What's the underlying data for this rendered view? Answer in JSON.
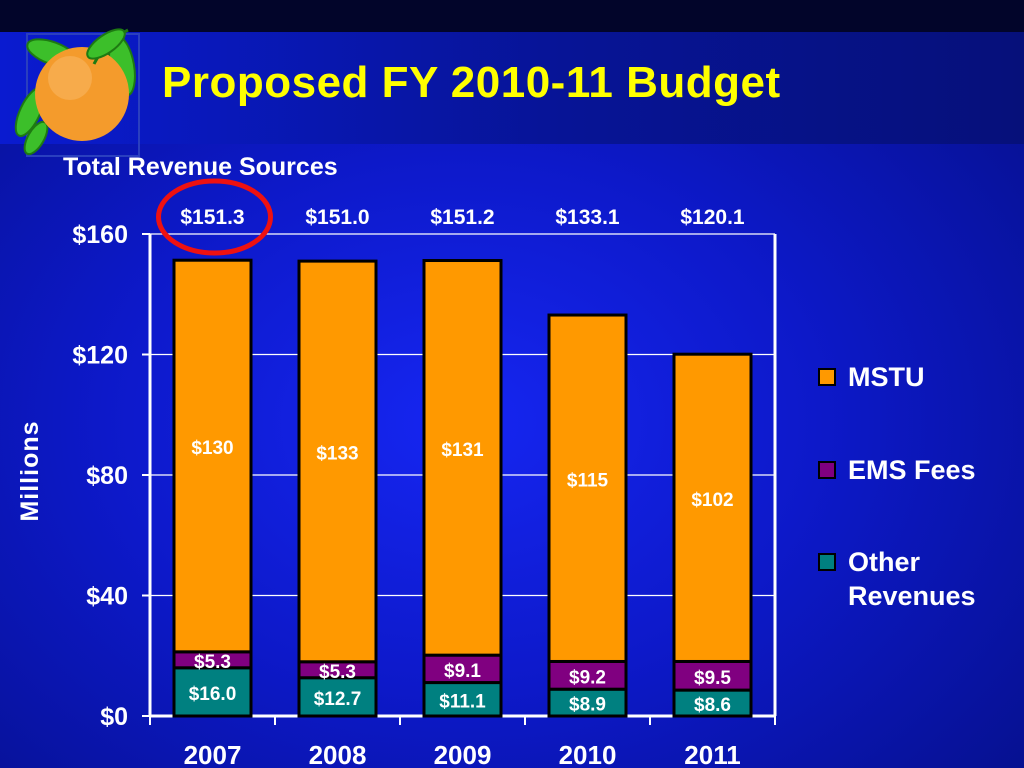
{
  "title": "Proposed FY 2010-11 Budget",
  "subtitle": "Total Revenue Sources",
  "colors": {
    "mstu": "#ff9900",
    "ems": "#800080",
    "other": "#008080",
    "title": "#ffff00",
    "highlight_circle": "#ee1111"
  },
  "logo_icon": "orange-with-leaves-icon",
  "chart_data": {
    "type": "bar",
    "stacked": true,
    "categories": [
      "2007",
      "2008",
      "2009",
      "2010",
      "2011"
    ],
    "ylabel": "Millions",
    "ylim": [
      0,
      160
    ],
    "yticks": [
      0,
      40,
      80,
      120,
      160
    ],
    "ytick_labels": [
      "$0",
      "$40",
      "$80",
      "$120",
      "$160"
    ],
    "grid": true,
    "legend_position": "right",
    "totals": [
      151.3,
      151.0,
      151.2,
      133.1,
      120.1
    ],
    "total_labels": [
      "$151.3",
      "$151.0",
      "$151.2",
      "$133.1",
      "$120.1"
    ],
    "highlighted_total_index": 0,
    "series": [
      {
        "name": "Other Revenues",
        "values": [
          16.0,
          12.7,
          11.1,
          8.9,
          8.6
        ],
        "labels": [
          "$16.0",
          "$12.7",
          "$11.1",
          "$8.9",
          "$8.6"
        ],
        "color": "#008080",
        "label_color": "#ffffff"
      },
      {
        "name": "EMS Fees",
        "values": [
          5.3,
          5.3,
          9.1,
          9.2,
          9.5
        ],
        "labels": [
          "$5.3",
          "$5.3",
          "$9.1",
          "$9.2",
          "$9.5"
        ],
        "color": "#800080",
        "label_color": "#ffffff"
      },
      {
        "name": "MSTU",
        "values": [
          130,
          133,
          131,
          115,
          102
        ],
        "labels": [
          "$130",
          "$133",
          "$131",
          "$115",
          "$102"
        ],
        "color": "#ff9900",
        "label_color": "#ffffff"
      }
    ]
  },
  "legend": [
    {
      "label": "MSTU",
      "color": "#ff9900"
    },
    {
      "label": "EMS Fees",
      "color": "#800080"
    },
    {
      "label": "Other\nRevenues",
      "color": "#008080"
    }
  ]
}
